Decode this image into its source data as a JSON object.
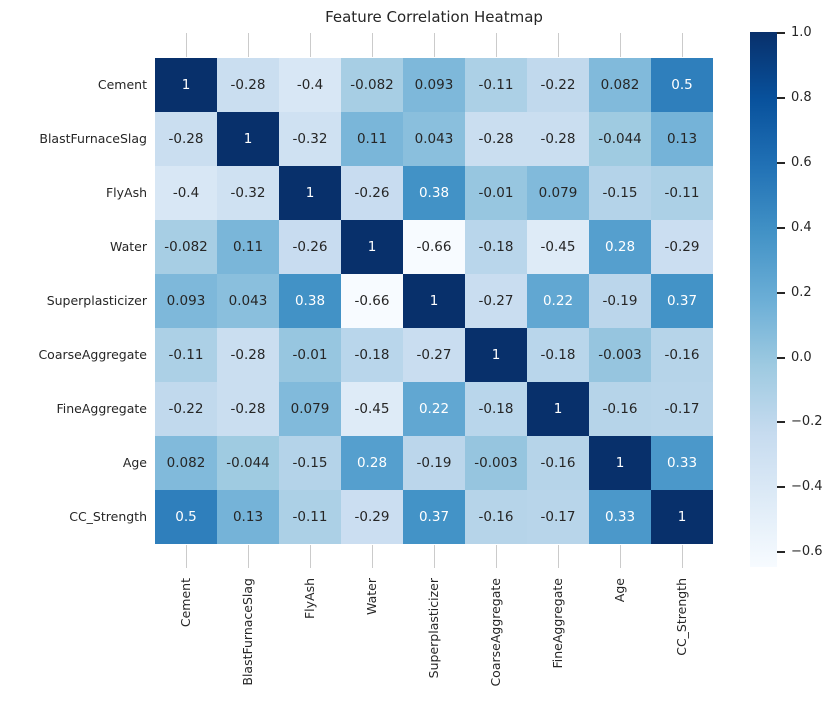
{
  "title": "Feature Correlation Heatmap",
  "colors": {
    "background": "#ffffff",
    "text_dark": "#262626",
    "text_light": "#ffffff",
    "tick_line": "#cbcbcb",
    "colormap_low": "#f7fbff",
    "colormap_high": "#08306b"
  },
  "chart_data": {
    "type": "heatmap",
    "title": "Feature Correlation Heatmap",
    "categories": [
      "Cement",
      "BlastFurnaceSlag",
      "FlyAsh",
      "Water",
      "Superplasticizer",
      "CoarseAggregate",
      "FineAggregate",
      "Age",
      "CC_Strength"
    ],
    "matrix": [
      [
        1,
        -0.28,
        -0.4,
        -0.082,
        0.093,
        -0.11,
        -0.22,
        0.082,
        0.5
      ],
      [
        -0.28,
        1,
        -0.32,
        0.11,
        0.043,
        -0.28,
        -0.28,
        -0.044,
        0.13
      ],
      [
        -0.4,
        -0.32,
        1,
        -0.26,
        0.38,
        -0.01,
        0.079,
        -0.15,
        -0.11
      ],
      [
        -0.082,
        0.11,
        -0.26,
        1,
        -0.66,
        -0.18,
        -0.45,
        0.28,
        -0.29
      ],
      [
        0.093,
        0.043,
        0.38,
        -0.66,
        1,
        -0.27,
        0.22,
        -0.19,
        0.37
      ],
      [
        -0.11,
        -0.28,
        -0.01,
        -0.18,
        -0.27,
        1,
        -0.18,
        -0.003,
        -0.16
      ],
      [
        -0.22,
        -0.28,
        0.079,
        -0.45,
        0.22,
        -0.18,
        1,
        -0.16,
        -0.17
      ],
      [
        0.082,
        -0.044,
        -0.15,
        0.28,
        -0.19,
        -0.003,
        -0.16,
        1,
        0.33
      ],
      [
        0.5,
        0.13,
        -0.11,
        -0.29,
        0.37,
        -0.16,
        -0.17,
        0.33,
        1
      ]
    ],
    "colormap": "Blues",
    "vmin": -0.66,
    "vmax": 1.0,
    "annotation_format": ".2g",
    "grid": false,
    "legend_position": "right-colorbar",
    "colorbar_ticks": [
      "1.0",
      "0.8",
      "0.6",
      "0.4",
      "0.2",
      "0.0",
      "−0.2",
      "−0.4",
      "−0.6"
    ],
    "colorbar_tick_values": [
      1.0,
      0.8,
      0.6,
      0.4,
      0.2,
      0.0,
      -0.2,
      -0.4,
      -0.6
    ]
  }
}
